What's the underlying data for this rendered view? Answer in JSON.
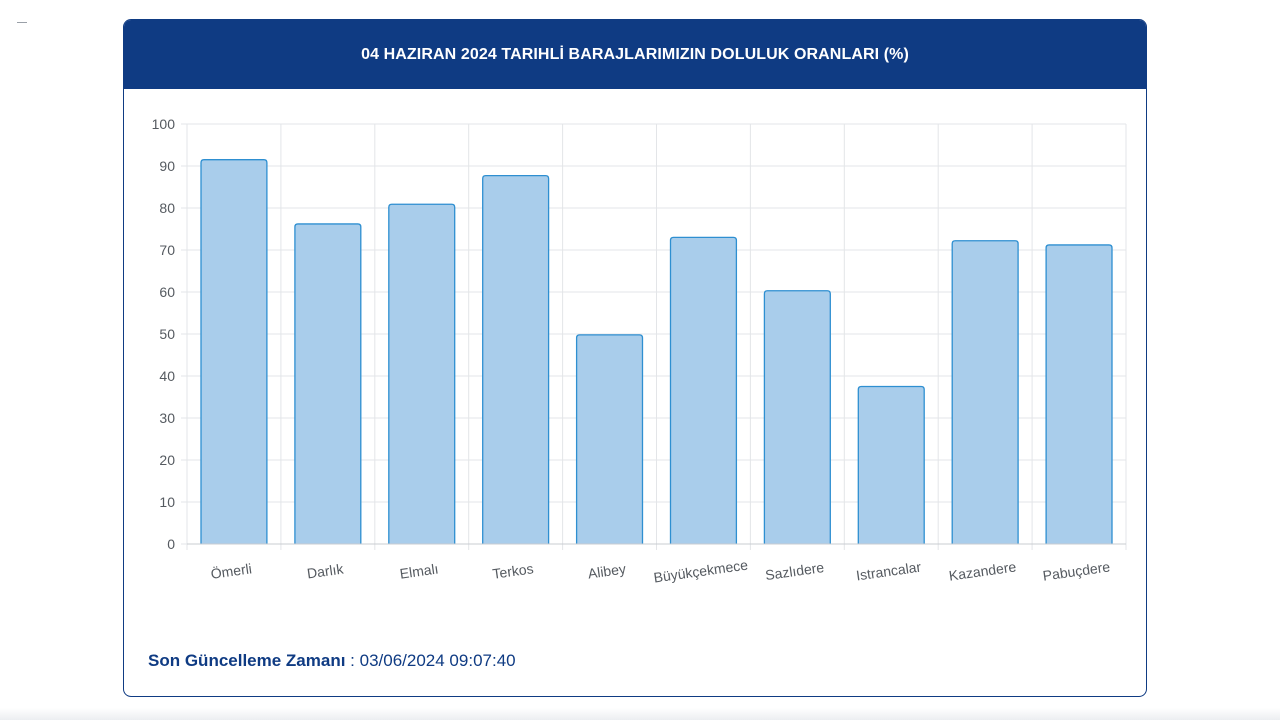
{
  "header": {
    "title": "04 HAZIRAN 2024 TARIHLİ BARAJLARIMIZIN DOLULUK ORANLARI (%)"
  },
  "footer": {
    "label": "Son Güncelleme Zamanı",
    "separator": " : ",
    "value": "03/06/2024 09:07:40"
  },
  "colors": {
    "brand": "#0f3b83",
    "bar_fill": "#a9cdeb",
    "bar_stroke": "#2e8fd1",
    "grid": "#e3e5e8",
    "tick_text": "#555a60"
  },
  "chart_data": {
    "type": "bar",
    "categories": [
      "Ömerli",
      "Darlık",
      "Elmalı",
      "Terkos",
      "Alibey",
      "Büyükçekmece",
      "Sazlıdere",
      "Istrancalar",
      "Kazandere",
      "Pabuçdere"
    ],
    "values": [
      91.5,
      76.2,
      80.9,
      87.7,
      49.8,
      73.0,
      60.3,
      37.5,
      72.2,
      71.2
    ],
    "title": "04 HAZIRAN 2024 TARIHLİ BARAJLARIMIZIN DOLULUK ORANLARI (%)",
    "xlabel": "",
    "ylabel": "",
    "ylim": [
      0,
      100
    ],
    "yticks": [
      0,
      10,
      20,
      30,
      40,
      50,
      60,
      70,
      80,
      90,
      100
    ],
    "grid": true,
    "legend": "none"
  }
}
